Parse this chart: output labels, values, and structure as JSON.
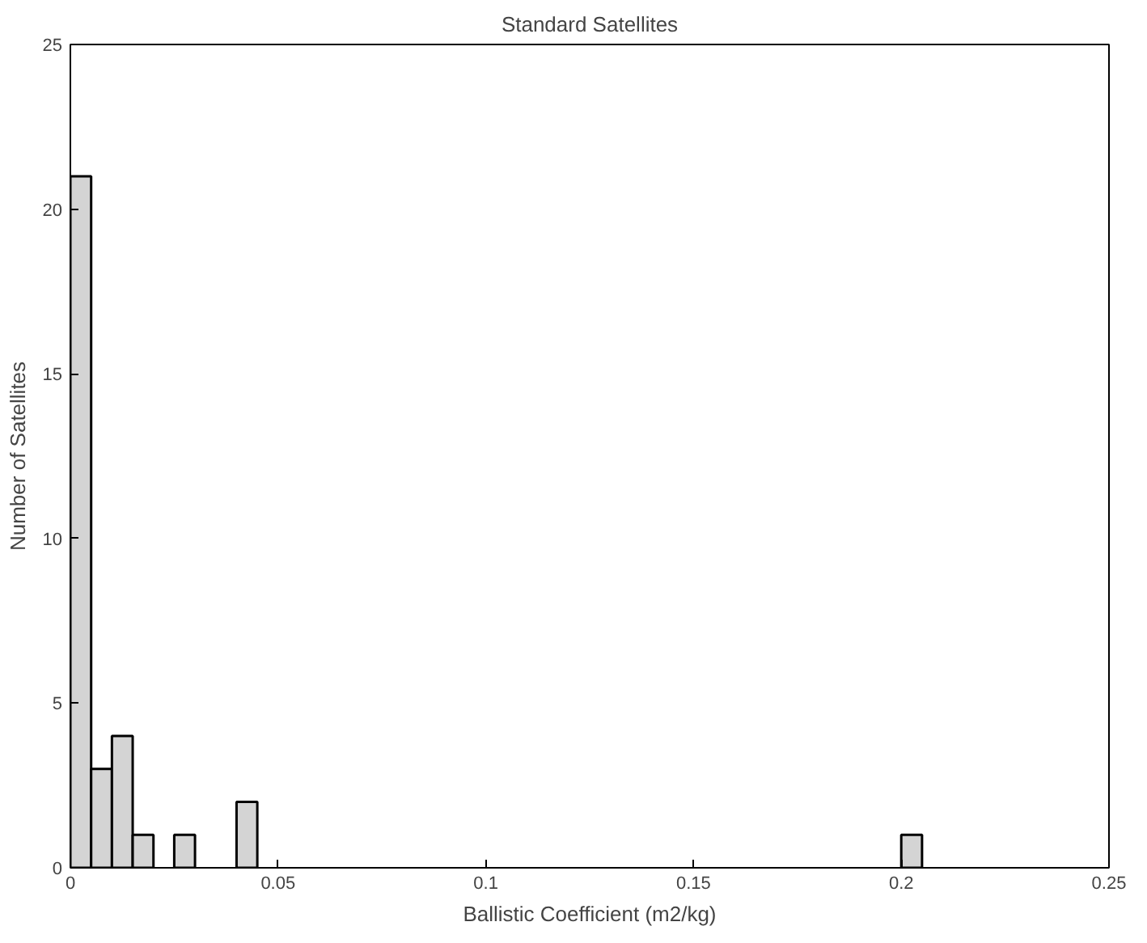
{
  "chart_data": {
    "type": "histogram",
    "title": "Standard Satellites",
    "xlabel": "Ballistic Coefficient (m2/kg)",
    "ylabel": "Number of Satellites",
    "bins": [
      0,
      0.005,
      0.01,
      0.015,
      0.02,
      0.025,
      0.03,
      0.035,
      0.04,
      0.045,
      0.05,
      0.055,
      0.06,
      0.065,
      0.07,
      0.075,
      0.08,
      0.085,
      0.09,
      0.095,
      0.1,
      0.105,
      0.11,
      0.115,
      0.12,
      0.125,
      0.13,
      0.135,
      0.14,
      0.145,
      0.15,
      0.155,
      0.16,
      0.165,
      0.17,
      0.175,
      0.18,
      0.185,
      0.19,
      0.195,
      0.2,
      0.205
    ],
    "values": [
      21,
      3,
      4,
      1,
      0,
      1,
      0,
      0,
      2,
      0,
      0,
      0,
      0,
      0,
      0,
      0,
      0,
      0,
      0,
      0,
      0,
      0,
      0,
      0,
      0,
      0,
      0,
      0,
      0,
      0,
      0,
      0,
      0,
      0,
      0,
      0,
      0,
      0,
      0,
      0,
      1
    ],
    "color": "#d4d4d4",
    "xlim": [
      0,
      0.25
    ],
    "ylim": [
      0,
      25
    ],
    "xticks": [
      0,
      0.05,
      0.1,
      0.15,
      0.2,
      0.25
    ],
    "yticks": [
      0,
      5,
      10,
      15,
      20,
      25
    ],
    "grid": false
  }
}
